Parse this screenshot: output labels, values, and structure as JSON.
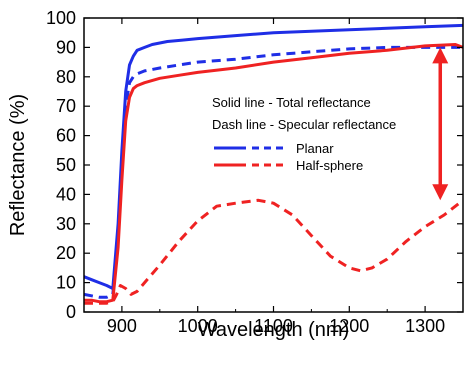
{
  "chart_data": {
    "type": "line",
    "xlabel": "Wavelength (nm)",
    "ylabel": "Reflectance (%)",
    "xlim": [
      850,
      1350
    ],
    "ylim": [
      0,
      100
    ],
    "x_ticks": [
      900,
      1000,
      1100,
      1200,
      1300
    ],
    "y_ticks": [
      0,
      10,
      20,
      30,
      40,
      50,
      60,
      70,
      80,
      90,
      100
    ],
    "grid": false,
    "legend_position": "center-right",
    "annotations": [
      "Solid line - Total reflectance",
      "Dash line - Specular reflectance"
    ],
    "series": [
      {
        "name": "Planar",
        "style": "solid",
        "color": "#1f2ee6",
        "x": [
          850,
          860,
          870,
          880,
          888,
          895,
          900,
          905,
          910,
          915,
          920,
          930,
          940,
          960,
          980,
          1000,
          1050,
          1100,
          1150,
          1200,
          1250,
          1300,
          1350
        ],
        "y": [
          12,
          11,
          10,
          9,
          8,
          30,
          55,
          75,
          84,
          87,
          89,
          90,
          91,
          92,
          92.5,
          93,
          94,
          95,
          95.5,
          96,
          96.5,
          97,
          97.5
        ]
      },
      {
        "name": "Planar",
        "style": "dashed",
        "color": "#1f2ee6",
        "x": [
          850,
          860,
          870,
          880,
          888,
          895,
          900,
          905,
          910,
          915,
          920,
          930,
          950,
          975,
          1000,
          1050,
          1100,
          1150,
          1200,
          1250,
          1300,
          1350
        ],
        "y": [
          6,
          5.5,
          5,
          5,
          6,
          25,
          50,
          70,
          78,
          80,
          81,
          82,
          83,
          84,
          85,
          86,
          87.5,
          88.5,
          89.5,
          90,
          90,
          90
        ]
      },
      {
        "name": "Half-sphere",
        "style": "solid",
        "color": "#ef2222",
        "x": [
          850,
          860,
          870,
          880,
          888,
          895,
          900,
          905,
          910,
          915,
          920,
          930,
          950,
          975,
          1000,
          1050,
          1100,
          1150,
          1200,
          1250,
          1300,
          1340,
          1350
        ],
        "y": [
          4,
          4,
          3.5,
          3.5,
          4,
          22,
          45,
          65,
          73,
          76,
          77,
          78,
          79.5,
          80.5,
          81.5,
          83,
          85,
          86.5,
          88,
          89,
          90.5,
          91,
          90
        ]
      },
      {
        "name": "Half-sphere",
        "style": "dashed",
        "color": "#ef2222",
        "x": [
          850,
          860,
          870,
          880,
          888,
          893,
          898,
          905,
          912,
          920,
          930,
          950,
          975,
          1000,
          1025,
          1050,
          1080,
          1100,
          1125,
          1150,
          1175,
          1200,
          1215,
          1230,
          1250,
          1275,
          1300,
          1325,
          1350
        ],
        "y": [
          3,
          3,
          3,
          3,
          3.5,
          6,
          9,
          8,
          6,
          7,
          10,
          16,
          24,
          31,
          36,
          37,
          38,
          37,
          33,
          26,
          19,
          15,
          14,
          15,
          18,
          24,
          29,
          33,
          38
        ]
      }
    ]
  }
}
